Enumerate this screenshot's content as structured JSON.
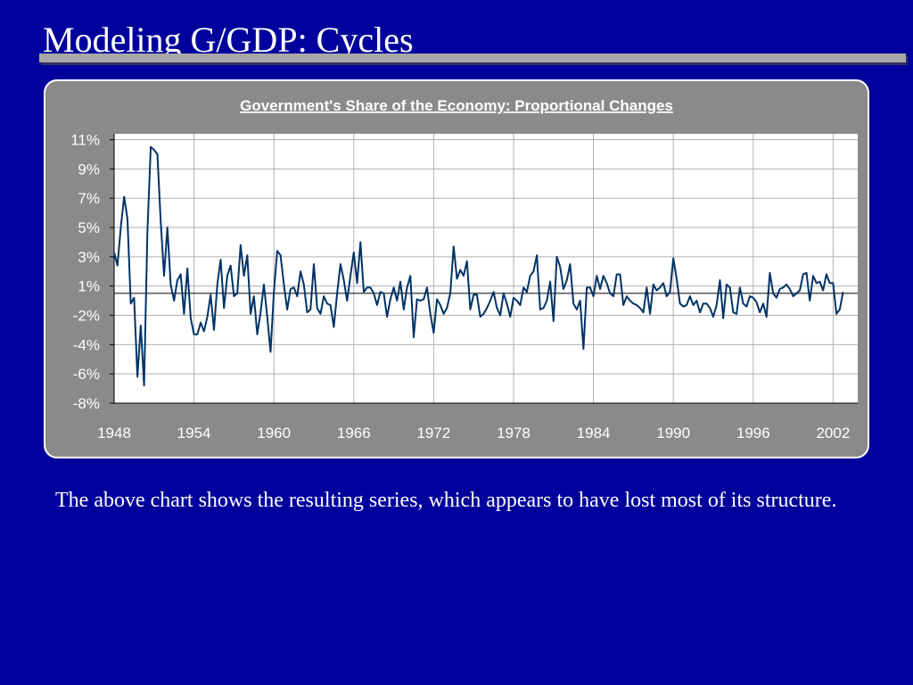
{
  "slide_title": "Modeling G/GDP: Cycles",
  "body_text": "The above chart shows the resulting series, which appears to have lost most of its structure.",
  "chart_data": {
    "type": "line",
    "title": "Government's Share of the Economy: Proportional Changes",
    "x": [
      1948,
      1948.25,
      1948.5,
      1948.75,
      1949,
      1949.25,
      1949.5,
      1949.75,
      1950,
      1950.25,
      1950.5,
      1950.75,
      1951,
      1951.25,
      1951.5,
      1951.75,
      1952,
      1952.25,
      1952.5,
      1952.75,
      1953,
      1953.25,
      1953.5,
      1953.75,
      1954,
      1954.25,
      1954.5,
      1954.75,
      1955,
      1955.25,
      1955.5,
      1955.75,
      1956,
      1956.25,
      1956.5,
      1956.75,
      1957,
      1957.25,
      1957.5,
      1957.75,
      1958,
      1958.25,
      1958.5,
      1958.75,
      1959,
      1959.25,
      1959.5,
      1959.75,
      1960,
      1960.25,
      1960.5,
      1960.75,
      1961,
      1961.25,
      1961.5,
      1961.75,
      1962,
      1962.25,
      1962.5,
      1962.75,
      1963,
      1963.25,
      1963.5,
      1963.75,
      1964,
      1964.25,
      1964.5,
      1964.75,
      1965,
      1965.25,
      1965.5,
      1965.75,
      1966,
      1966.25,
      1966.5,
      1966.75,
      1967,
      1967.25,
      1967.5,
      1967.75,
      1968,
      1968.25,
      1968.5,
      1968.75,
      1969,
      1969.25,
      1969.5,
      1969.75,
      1970,
      1970.25,
      1970.5,
      1970.75,
      1971,
      1971.25,
      1971.5,
      1971.75,
      1972,
      1972.25,
      1972.5,
      1972.75,
      1973,
      1973.25,
      1973.5,
      1973.75,
      1974,
      1974.25,
      1974.5,
      1974.75,
      1975,
      1975.25,
      1975.5,
      1975.75,
      1976,
      1976.25,
      1976.5,
      1976.75,
      1977,
      1977.25,
      1977.5,
      1977.75,
      1978,
      1978.25,
      1978.5,
      1978.75,
      1979,
      1979.25,
      1979.5,
      1979.75,
      1980,
      1980.25,
      1980.5,
      1980.75,
      1981,
      1981.25,
      1981.5,
      1981.75,
      1982,
      1982.25,
      1982.5,
      1982.75,
      1983,
      1983.25,
      1983.5,
      1983.75,
      1984,
      1984.25,
      1984.5,
      1984.75,
      1985,
      1985.25,
      1985.5,
      1985.75,
      1986,
      1986.25,
      1986.5,
      1986.75,
      1987,
      1987.25,
      1987.5,
      1987.75,
      1988,
      1988.25,
      1988.5,
      1988.75,
      1989,
      1989.25,
      1989.5,
      1989.75,
      1990,
      1990.25,
      1990.5,
      1990.75,
      1991,
      1991.25,
      1991.5,
      1991.75,
      1992,
      1992.25,
      1992.5,
      1992.75,
      1993,
      1993.25,
      1993.5,
      1993.75,
      1994,
      1994.25,
      1994.5,
      1994.75,
      1995,
      1995.25,
      1995.5,
      1995.75,
      1996,
      1996.25,
      1996.5,
      1996.75,
      1997,
      1997.25,
      1997.5,
      1997.75,
      1998,
      1998.25,
      1998.5,
      1998.75,
      1999,
      1999.25,
      1999.5,
      1999.75,
      2000,
      2000.25,
      2000.5,
      2000.75,
      2001,
      2001.25,
      2001.5,
      2001.75,
      2002,
      2002.25,
      2002.5,
      2002.75
    ],
    "series": [
      {
        "color": "#003366",
        "values": [
          2.8,
          1.9,
          4.5,
          6.6,
          5.1,
          -0.7,
          -0.3,
          -5.7,
          -2.2,
          -6.3,
          4.2,
          10.0,
          9.8,
          9.5,
          4.9,
          1.2,
          4.5,
          0.6,
          -0.5,
          0.9,
          1.3,
          -1.4,
          1.7,
          -1.7,
          -2.8,
          -2.8,
          -2.0,
          -2.6,
          -1.6,
          -0.1,
          -2.5,
          0.6,
          2.3,
          -1.0,
          1.2,
          1.9,
          -0.2,
          0,
          3.3,
          1.2,
          2.6,
          -1.4,
          -0.2,
          -2.8,
          -1.3,
          0.6,
          -1.6,
          -4.0,
          0.1,
          2.9,
          2.6,
          0.6,
          -1.1,
          0.3,
          0.4,
          -0.2,
          1.5,
          0.6,
          -1.3,
          -1.1,
          2.0,
          -1.0,
          -1.4,
          -0.2,
          -0.7,
          -0.8,
          -2.3,
          0,
          2.0,
          0.9,
          -0.5,
          1.2,
          2.8,
          0.7,
          3.5,
          0.1,
          0.4,
          0.4,
          0,
          -0.8,
          0.1,
          0,
          -1.6,
          -0.4,
          0.4,
          -0.5,
          0.8,
          -1.1,
          0.4,
          1.2,
          -3.0,
          -0.4,
          -0.5,
          -0.4,
          0.4,
          -1.4,
          -2.7,
          -0.4,
          -0.8,
          -1.4,
          -1.0,
          0,
          3.2,
          1.0,
          1.6,
          1.2,
          2.2,
          -1.1,
          -0.1,
          -0.1,
          -1.6,
          -1.4,
          -1.0,
          -0.5,
          0.1,
          -1.0,
          -1.5,
          0,
          -0.7,
          -1.6,
          -0.3,
          -0.5,
          -0.8,
          0.4,
          0.1,
          1.2,
          1.5,
          2.6,
          -1.1,
          -1.0,
          -0.5,
          0.8,
          -1.9,
          2.5,
          1.8,
          0.3,
          0.9,
          2.0,
          -0.7,
          -1.1,
          -0.5,
          -3.8,
          0.4,
          0.4,
          -0.2,
          1.2,
          0.3,
          1.2,
          0.7,
          0,
          -0.2,
          1.3,
          1.3,
          -0.8,
          -0.2,
          -0.5,
          -0.7,
          -0.8,
          -1.0,
          -1.3,
          0.4,
          -1.4,
          0.6,
          0.2,
          0.4,
          0.7,
          -0.2,
          0.1,
          2.4,
          1.0,
          -0.7,
          -0.9,
          -0.8,
          -0.2,
          -0.8,
          -0.5,
          -1.3,
          -0.7,
          -0.7,
          -1.0,
          -1.6,
          -0.8,
          0.9,
          -1.7,
          0.6,
          0.4,
          -1.3,
          -1.4,
          0.4,
          -0.7,
          -0.9,
          -0.2,
          -0.3,
          -0.6,
          -1.3,
          -0.7,
          -1.6,
          1.4,
          0,
          -0.3,
          0.3,
          0.4,
          0.6,
          0.3,
          -0.2,
          0,
          0.2,
          1.3,
          1.4,
          -0.5,
          1.2,
          0.7,
          0.8,
          0.2,
          1.3,
          0.7,
          0.7,
          -1.4,
          -1.1,
          0.1
        ]
      }
    ],
    "xlim": [
      1948,
      2003.85
    ],
    "xticks": [
      1948,
      1954,
      1960,
      1966,
      1972,
      1978,
      1984,
      1990,
      1996,
      2002
    ],
    "ylim": [
      -7.5,
      10.9
    ],
    "yticks": [
      {
        "value": 10.5,
        "label": "11%"
      },
      {
        "value": 8.5,
        "label": "9%"
      },
      {
        "value": 6.5,
        "label": "7%"
      },
      {
        "value": 4.5,
        "label": "5%"
      },
      {
        "value": 2.5,
        "label": "3%"
      },
      {
        "value": 0.5,
        "label": "1%"
      },
      {
        "value": -1.5,
        "label": "-2%"
      },
      {
        "value": -3.5,
        "label": "-4%"
      },
      {
        "value": -5.5,
        "label": "-6%"
      },
      {
        "value": -7.5,
        "label": "-8%"
      }
    ],
    "grid": true
  }
}
